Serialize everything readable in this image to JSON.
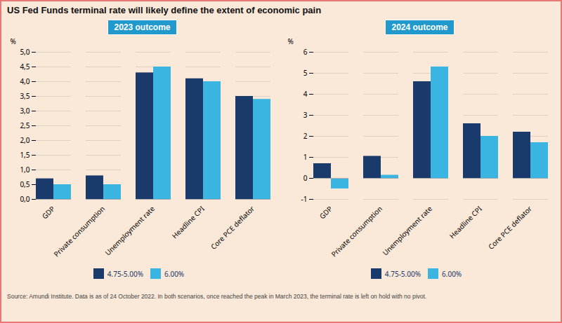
{
  "title": "US Fed Funds terminal rate will likely define the extent of economic pain",
  "source": "Source: Amundi Institute. Data is as of 24 October 2022. In both scenarios, once reached the peak in March 2023, the terminal rate is left on hold with no pivot.",
  "chart_data": [
    {
      "type": "bar",
      "title": "2023 outcome",
      "categories": [
        "GDP",
        "Private consumption",
        "Unemployment rate",
        "Headline CPI",
        "Core PCE deflator"
      ],
      "series": [
        {
          "name": "4.75-5.00%",
          "color": "#1a3a6b",
          "values": [
            0.7,
            0.8,
            4.3,
            4.1,
            3.5
          ]
        },
        {
          "name": "6.00%",
          "color": "#3ab4e0",
          "values": [
            0.5,
            0.5,
            4.5,
            4.0,
            3.4
          ]
        }
      ],
      "ylabel": "%",
      "ylim": [
        0.0,
        5.0
      ],
      "yticks": [
        {
          "value": 0.0,
          "label": "0,0"
        },
        {
          "value": 0.5,
          "label": "0,5"
        },
        {
          "value": 1.0,
          "label": "1,0"
        },
        {
          "value": 1.5,
          "label": "1,5"
        },
        {
          "value": 2.0,
          "label": "2,0"
        },
        {
          "value": 2.5,
          "label": "2,5"
        },
        {
          "value": 3.0,
          "label": "3,0"
        },
        {
          "value": 3.5,
          "label": "3,5"
        },
        {
          "value": 4.0,
          "label": "4,0"
        },
        {
          "value": 4.5,
          "label": "4,5"
        },
        {
          "value": 5.0,
          "label": "5,0"
        }
      ],
      "grid": true,
      "legend": "bottom"
    },
    {
      "type": "bar",
      "title": "2024 outcome",
      "categories": [
        "GDP",
        "Private consumption",
        "Unemployment rate",
        "Headline CPI",
        "Core PCE deflator"
      ],
      "series": [
        {
          "name": "4.75-5.00%",
          "color": "#1a3a6b",
          "values": [
            0.7,
            1.05,
            4.6,
            2.6,
            2.2
          ]
        },
        {
          "name": "6.00%",
          "color": "#3ab4e0",
          "values": [
            -0.5,
            0.15,
            5.3,
            2.0,
            1.7
          ]
        }
      ],
      "ylabel": "%",
      "ylim": [
        -1.0,
        6.0
      ],
      "yticks": [
        -1,
        0,
        1,
        2,
        3,
        4,
        5,
        6
      ],
      "grid": true,
      "legend": "bottom"
    }
  ]
}
